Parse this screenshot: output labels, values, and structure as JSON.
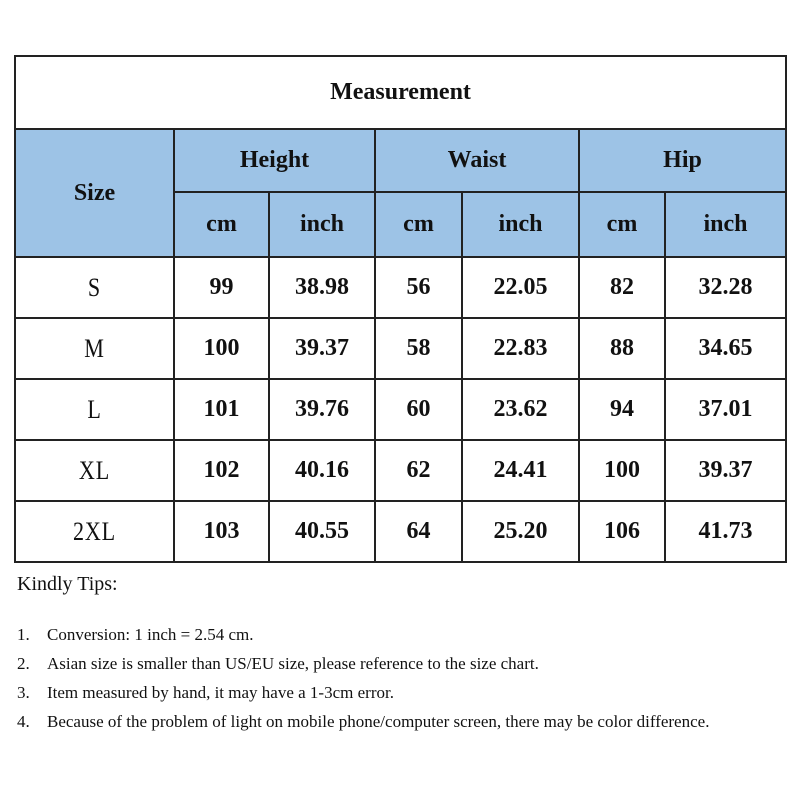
{
  "table": {
    "title": "Measurement",
    "size_header": "Size",
    "groups": [
      "Height",
      "Waist",
      "Hip"
    ],
    "units": [
      "cm",
      "inch",
      "cm",
      "inch",
      "cm",
      "inch"
    ],
    "rows": [
      {
        "size": "S",
        "values": [
          "99",
          "38.98",
          "56",
          "22.05",
          "82",
          "32.28"
        ]
      },
      {
        "size": "M",
        "values": [
          "100",
          "39.37",
          "58",
          "22.83",
          "88",
          "34.65"
        ]
      },
      {
        "size": "L",
        "values": [
          "101",
          "39.76",
          "60",
          "23.62",
          "94",
          "37.01"
        ]
      },
      {
        "size": "XL",
        "values": [
          "102",
          "40.16",
          "62",
          "24.41",
          "100",
          "39.37"
        ]
      },
      {
        "size": "2XL",
        "values": [
          "103",
          "40.55",
          "64",
          "25.20",
          "106",
          "41.73"
        ]
      }
    ],
    "header_color": "#9dc3e6"
  },
  "tips": {
    "heading": "Kindly Tips:",
    "items": [
      {
        "num": "1.",
        "text": "Conversion: 1 inch = 2.54 cm."
      },
      {
        "num": "2.",
        "text": "Asian size is smaller than US/EU size, please reference to the size chart."
      },
      {
        "num": "3.",
        "text": "Item measured by hand, it may have a 1-3cm error."
      },
      {
        "num": "4.",
        "text": "Because of the problem of light on mobile phone/computer screen, there may be color difference."
      }
    ]
  }
}
